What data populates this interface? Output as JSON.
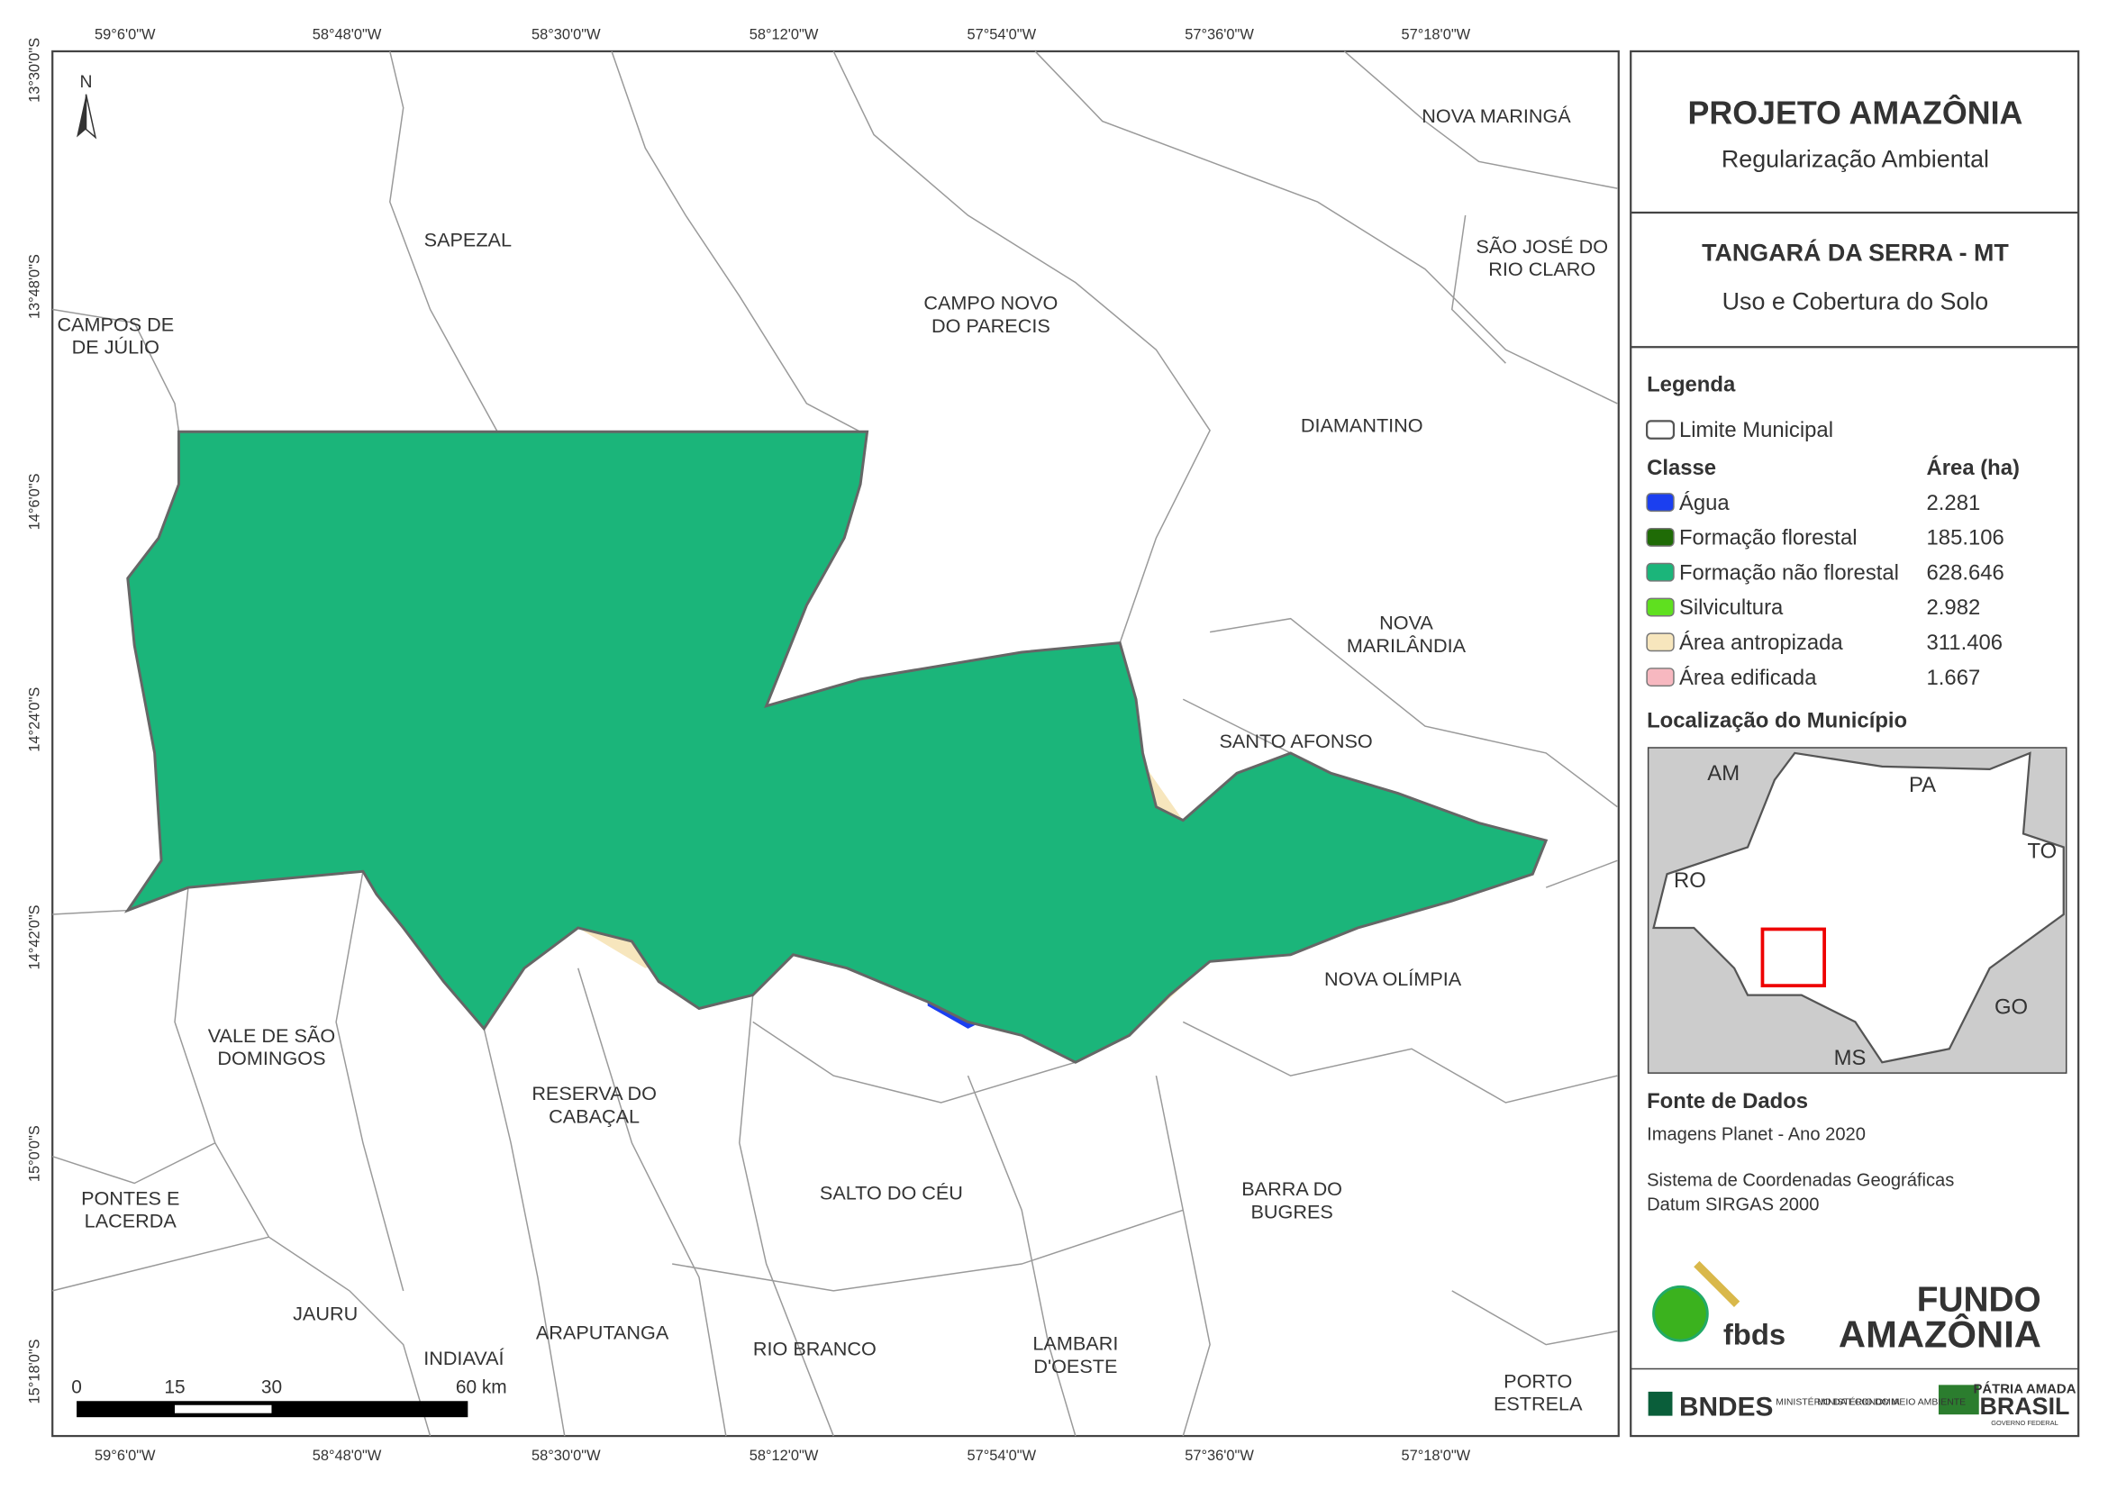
{
  "header": {
    "title": "PROJETO AMAZÔNIA",
    "subtitle": "Regularização Ambiental"
  },
  "municipality": {
    "name": "TANGARÁ DA SERRA - MT",
    "theme": "Uso e Cobertura do Solo"
  },
  "legend": {
    "title": "Legenda",
    "boundary": "Limite Municipal",
    "class_header": "Classe",
    "area_header": "Área (ha)",
    "classes": [
      {
        "name": "Água",
        "color": "#1b3ff0",
        "area": "2.281"
      },
      {
        "name": "Formação florestal",
        "color": "#1f6b06",
        "area": "185.106"
      },
      {
        "name": "Formação não florestal",
        "color": "#1bb57a",
        "area": "628.646"
      },
      {
        "name": "Silvicultura",
        "color": "#5fe01f",
        "area": "2.982"
      },
      {
        "name": "Área antropizada",
        "color": "#f7e6bd",
        "area": "311.406"
      },
      {
        "name": "Área edificada",
        "color": "#f7b8c0",
        "area": "1.667"
      }
    ]
  },
  "location": {
    "title": "Localização do Município",
    "states": [
      "AM",
      "PA",
      "TO",
      "RO",
      "GO",
      "MS"
    ]
  },
  "sources": {
    "title": "Fonte de Dados",
    "lines": [
      "Imagens Planet - Ano 2020",
      "Sistema de Coordenadas Geográficas",
      "Datum SIRGAS 2000"
    ]
  },
  "logos": [
    "fbds",
    "FUNDO",
    "AMAZÔNIA",
    "BNDES",
    "MINISTÉRIO DA ECONOMIA",
    "MINISTÉRIO DO MEIO AMBIENTE",
    "PÁTRIA AMADA",
    "BRASIL",
    "GOVERNO FEDERAL"
  ],
  "map": {
    "north": "N",
    "longitudes": [
      "59°6'0\"W",
      "58°48'0\"W",
      "58°30'0\"W",
      "58°12'0\"W",
      "57°54'0\"W",
      "57°36'0\"W",
      "57°18'0\"W"
    ],
    "latitudes": [
      "13°30'0\"S",
      "13°48'0\"S",
      "14°6'0\"S",
      "14°24'0\"S",
      "14°42'0\"S",
      "15°0'0\"S",
      "15°18'0\"S"
    ],
    "scale": [
      "0",
      "15",
      "30",
      "60 km"
    ],
    "neighbors": [
      [
        "SAPEZAL"
      ],
      [
        "CAMPOS DE",
        "DE JÚLIO"
      ],
      [
        "CAMPO NOVO",
        "DO PARECIS"
      ],
      [
        "NOVA MARINGÁ"
      ],
      [
        "SÃO JOSÉ DO",
        "RIO CLARO"
      ],
      [
        "DIAMANTINO"
      ],
      [
        "NOVA",
        "MARILÂNDIA"
      ],
      [
        "SANTO AFONSO"
      ],
      [
        "NOVA OLÍMPIA"
      ],
      [
        "VALE DE SÃO",
        "DOMINGOS"
      ],
      [
        "RESERVA DO",
        "CABAÇAL"
      ],
      [
        "SALTO DO CÉU"
      ],
      [
        "BARRA DO",
        "BUGRES"
      ],
      [
        "PONTES E",
        "LACERDA"
      ],
      [
        "JAURU"
      ],
      [
        "ARAPUTANGA"
      ],
      [
        "INDIAVAÍ"
      ],
      [
        "RIO BRANCO"
      ],
      [
        "LAMBARI",
        "D'OESTE"
      ],
      [
        "PORTO",
        "ESTRELA"
      ]
    ]
  }
}
